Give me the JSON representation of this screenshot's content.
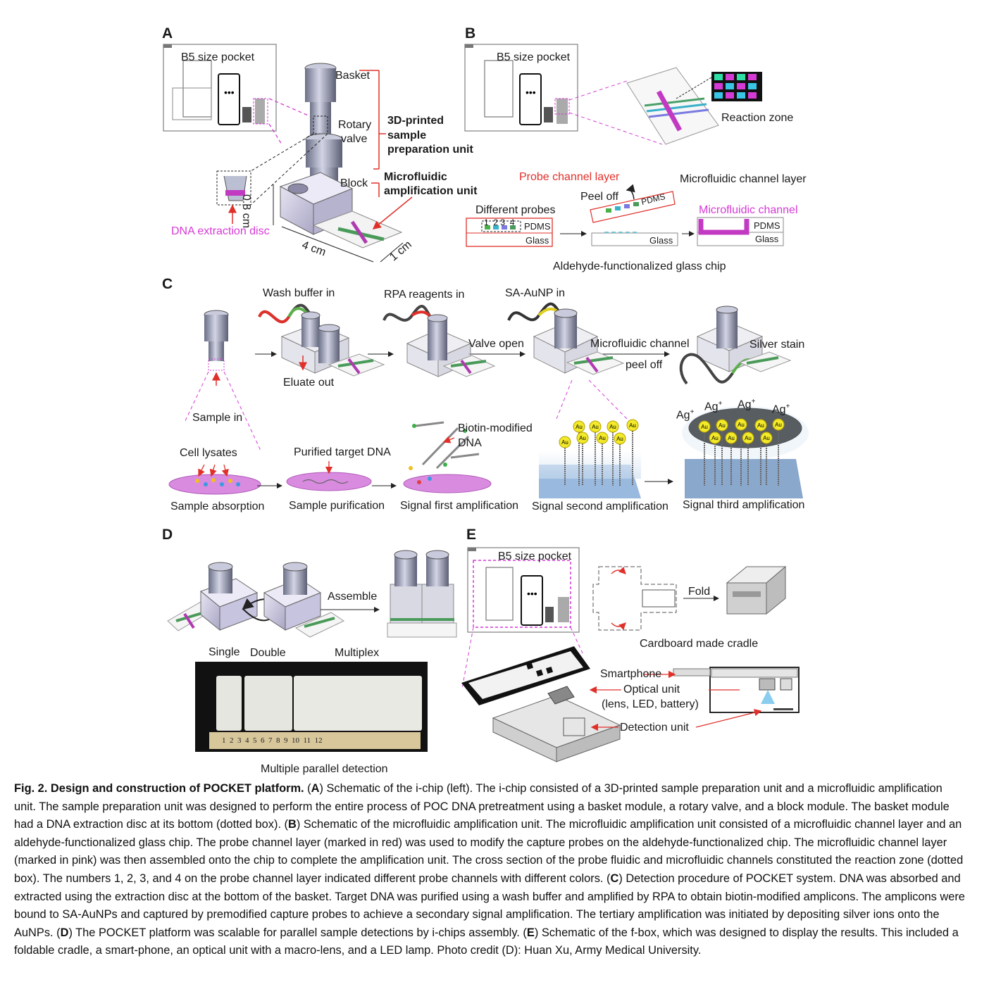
{
  "panels": {
    "a": {
      "label": "A",
      "pocket": "B5 size pocket",
      "basket": "Basket",
      "rotary": "Rotary",
      "valve": "valve",
      "printed1": "3D-printed",
      "printed2": "sample",
      "printed3": "preparation unit",
      "block": "Block",
      "micro1": "Microfluidic",
      "micro2": "amplification unit",
      "dim_height": "0.8 cm",
      "dim_length": "4 cm",
      "dim_width": "1 cm",
      "disc": "DNA extraction disc"
    },
    "b": {
      "label": "B",
      "pocket": "B5 size pocket",
      "reaction_zone": "Reaction zone",
      "probe_layer": "Probe channel layer",
      "micro_layer": "Microfluidic channel layer",
      "peel_off": "Peel off",
      "pdms_tilted": "PDMS",
      "different_probes": "Different probes",
      "numbers": "1  2 3  4",
      "pdms1": "PDMS",
      "glass1": "Glass",
      "glass2": "Glass",
      "micro_channel": "Microfluidic channel",
      "pdms3": "PDMS",
      "glass3": "Glass",
      "aldehyde": "Aldehyde-functionalized glass chip"
    },
    "c": {
      "label": "C",
      "wash": "Wash buffer in",
      "rpa": "RPA reagents in",
      "saaunp": "SA-AuNP in",
      "eluate": "Eluate out",
      "valve_open": "Valve open",
      "mc_peel1": "Microfluidic channel",
      "mc_peel2": "peel off",
      "silver": "Silver stain",
      "sample_in": "Sample in",
      "cell_lysates": "Cell lysates",
      "purified": "Purified target DNA",
      "biotin1": "Biotin-modified",
      "biotin2": "DNA",
      "ag": "Ag",
      "sup": "+",
      "au": "Au",
      "step1": "Sample absorption",
      "step2": "Sample purification",
      "step3": "Signal first amplification",
      "step4": "Signal second amplification",
      "step5": "Signal third amplification"
    },
    "d": {
      "label": "D",
      "assemble": "Assemble",
      "single": "Single",
      "double": "Double",
      "multiplex": "Multiplex",
      "ruler": "1  2  3  4  5  6  7  8  9  10  11  12",
      "parallel": "Multiple parallel detection"
    },
    "e": {
      "label": "E",
      "pocket": "B5 size pocket",
      "fold": "Fold",
      "cradle": "Cardboard made cradle",
      "smartphone": "Smartphone",
      "optical1": "Optical unit",
      "optical2": "(lens, LED, battery)",
      "detection": "Detection unit"
    }
  },
  "caption": {
    "title": "Fig. 2. Design and construction of POCKET platform.",
    "a_key": "A",
    "a_text": ") Schematic of the i-chip (left). The i-chip consisted of a 3D-printed sample preparation unit and a microfluidic amplification unit. The sample preparation unit was designed to perform the entire process of POC DNA pretreatment using a basket module, a rotary valve, and a block module. The basket module had a DNA extraction disc at its bottom (dotted box). (",
    "b_key": "B",
    "b_text": ") Schematic of the microfluidic amplification unit. The microfluidic amplification unit consisted of a microfluidic channel layer and an aldehyde-functionalized glass chip. The probe channel layer (marked in red) was used to modify the capture probes on the aldehyde-functionalized chip. The microfluidic channel layer (marked in pink) was then assembled onto the chip to complete the amplification unit. The cross section of the probe fluidic and microfluidic channels constituted the reaction zone (dotted box). The numbers 1, 2, 3, and 4 on the probe channel layer indicated different probe channels with different colors. (",
    "c_key": "C",
    "c_text": ") Detection procedure of POCKET system. DNA was absorbed and extracted using the extraction disc at the bottom of the basket. Target DNA was purified using a wash buffer and amplified by RPA to obtain biotin-modified amplicons. The amplicons were bound to SA-AuNPs and captured by premodified capture probes to achieve a secondary signal amplification. The tertiary amplification was initiated by depositing silver ions onto the AuNPs. (",
    "d_key": "D",
    "d_text": ") The POCKET platform was scalable for parallel sample detections by i-chips assembly. (",
    "e_key": "E",
    "e_text": ") Schematic of the f-box, which was designed to display the results. This included a foldable cradle, a smart-phone, an optical unit with a macro-lens, and a LED lamp. Photo credit (D): Huan Xu, Army Medical University."
  }
}
